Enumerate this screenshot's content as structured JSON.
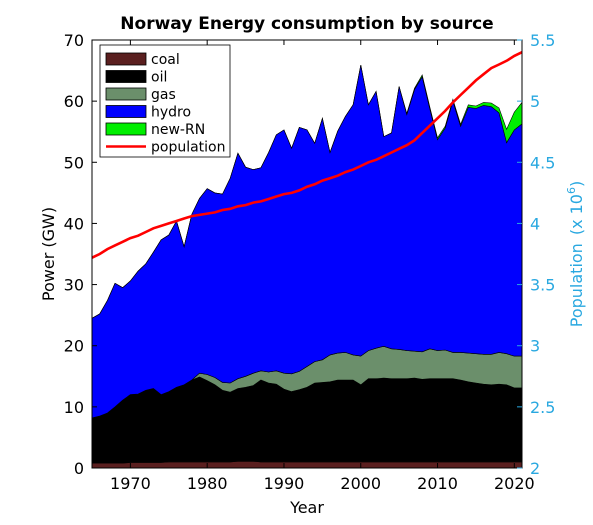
{
  "chart_data": {
    "type": "area",
    "title": "Norway Energy consumption by source",
    "xlabel": "Year",
    "ylabel": "Power (GW)",
    "y2label_main": "Population",
    "y2label_unit_prefix": "(x 10",
    "y2label_unit_exp": "6",
    "y2label_unit_suffix": ")",
    "xlim": [
      1965,
      2021
    ],
    "ylim": [
      0,
      70
    ],
    "y2lim": [
      2,
      5.5
    ],
    "xticks": [
      1970,
      1980,
      1990,
      2000,
      2010,
      2020
    ],
    "yticks": [
      0,
      10,
      20,
      30,
      40,
      50,
      60,
      70
    ],
    "y2ticks": [
      "2",
      "2.5",
      "3",
      "3.5",
      "4",
      "4.5",
      "5",
      "5.5"
    ],
    "legend_position": "top-left",
    "grid": false,
    "x": [
      1965,
      1966,
      1967,
      1968,
      1969,
      1970,
      1971,
      1972,
      1973,
      1974,
      1975,
      1976,
      1977,
      1978,
      1979,
      1980,
      1981,
      1982,
      1983,
      1984,
      1985,
      1986,
      1987,
      1988,
      1989,
      1990,
      1991,
      1992,
      1993,
      1994,
      1995,
      1996,
      1997,
      1998,
      1999,
      2000,
      2001,
      2002,
      2003,
      2004,
      2005,
      2006,
      2007,
      2008,
      2009,
      2010,
      2011,
      2012,
      2013,
      2014,
      2015,
      2016,
      2017,
      2018,
      2019,
      2020,
      2021
    ],
    "series": [
      {
        "name": "coal",
        "color": "#5a1f1f",
        "values": [
          0.8,
          0.8,
          0.8,
          0.8,
          0.8,
          0.9,
          0.9,
          0.9,
          0.9,
          0.9,
          1.0,
          1.0,
          1.0,
          1.0,
          1.0,
          1.0,
          1.0,
          1.0,
          1.0,
          1.1,
          1.1,
          1.1,
          1.0,
          1.0,
          1.0,
          1.0,
          1.0,
          1.0,
          1.0,
          1.0,
          1.0,
          1.0,
          1.0,
          1.0,
          1.0,
          1.0,
          1.0,
          1.0,
          1.0,
          1.0,
          1.0,
          1.0,
          1.0,
          1.0,
          1.0,
          1.0,
          1.0,
          1.0,
          1.0,
          1.0,
          1.0,
          1.0,
          1.0,
          1.0,
          1.0,
          1.0,
          1.0
        ]
      },
      {
        "name": "oil",
        "color": "#000000",
        "values": [
          7.4,
          7.7,
          8.2,
          9.2,
          10.3,
          11.1,
          11.2,
          11.8,
          12.1,
          11.1,
          11.5,
          12.2,
          12.6,
          13.4,
          13.9,
          13.3,
          12.6,
          11.7,
          11.4,
          11.9,
          12.1,
          12.4,
          13.4,
          12.9,
          12.7,
          11.9,
          11.5,
          11.8,
          12.2,
          12.9,
          13.0,
          13.1,
          13.4,
          13.4,
          13.4,
          12.6,
          13.6,
          13.6,
          13.7,
          13.6,
          13.6,
          13.6,
          13.7,
          13.5,
          13.6,
          13.6,
          13.6,
          13.6,
          13.4,
          13.1,
          12.9,
          12.7,
          12.6,
          12.7,
          12.6,
          12.1,
          12.1
        ]
      },
      {
        "name": "gas",
        "color": "#6b8f6b",
        "values": [
          0,
          0,
          0,
          0,
          0,
          0,
          0,
          0,
          0,
          0,
          0,
          0,
          0,
          0,
          0.6,
          1.0,
          1.2,
          1.3,
          1.5,
          1.6,
          1.8,
          2.0,
          1.5,
          1.8,
          2.2,
          2.6,
          2.9,
          3.0,
          3.4,
          3.5,
          3.7,
          4.4,
          4.4,
          4.5,
          4.1,
          4.7,
          4.6,
          5.0,
          5.2,
          4.9,
          4.8,
          4.6,
          4.4,
          4.5,
          4.9,
          4.6,
          4.7,
          4.3,
          4.5,
          4.7,
          4.8,
          4.9,
          5.0,
          5.2,
          5.1,
          5.2,
          5.2
        ]
      },
      {
        "name": "hydro",
        "color": "#0000ff",
        "values": [
          16.3,
          16.7,
          18.4,
          20.2,
          18.4,
          18.6,
          20.1,
          20.7,
          22.3,
          25.3,
          25.6,
          27.2,
          22.6,
          27.1,
          28.6,
          30.4,
          30.2,
          30.8,
          33.5,
          36.9,
          34.2,
          33.3,
          33.2,
          35.9,
          38.6,
          39.8,
          36.9,
          39.9,
          38.7,
          35.7,
          39.5,
          33.1,
          36.3,
          38.6,
          40.9,
          47.6,
          40.2,
          42.0,
          34.3,
          35.3,
          43.0,
          38.6,
          42.8,
          45.0,
          39.2,
          34.5,
          36.3,
          41.1,
          37.0,
          40.2,
          40.1,
          40.7,
          40.5,
          39.2,
          34.5,
          37.0,
          38.0
        ]
      },
      {
        "name": "new-RN",
        "color": "#00ee00",
        "values": [
          0,
          0,
          0,
          0,
          0,
          0,
          0,
          0,
          0,
          0,
          0,
          0,
          0,
          0,
          0,
          0,
          0,
          0,
          0,
          0,
          0,
          0,
          0,
          0,
          0,
          0,
          0,
          0,
          0,
          0,
          0,
          0,
          0,
          0,
          0,
          0,
          0,
          0,
          0,
          0,
          0,
          0.2,
          0.2,
          0.3,
          0.3,
          0.3,
          0.3,
          0.3,
          0.3,
          0.4,
          0.4,
          0.5,
          0.6,
          0.8,
          2.2,
          2.9,
          3.5
        ]
      }
    ],
    "population": {
      "name": "population",
      "color": "#ff0000",
      "values": [
        3.72,
        3.75,
        3.79,
        3.82,
        3.85,
        3.88,
        3.9,
        3.93,
        3.96,
        3.98,
        4.0,
        4.02,
        4.04,
        4.06,
        4.07,
        4.08,
        4.09,
        4.11,
        4.12,
        4.14,
        4.15,
        4.17,
        4.18,
        4.2,
        4.22,
        4.24,
        4.25,
        4.27,
        4.3,
        4.32,
        4.35,
        4.37,
        4.39,
        4.42,
        4.44,
        4.47,
        4.5,
        4.52,
        4.55,
        4.58,
        4.61,
        4.64,
        4.68,
        4.74,
        4.8,
        4.86,
        4.92,
        4.99,
        5.05,
        5.11,
        5.17,
        5.22,
        5.27,
        5.3,
        5.33,
        5.37,
        5.4
      ]
    }
  }
}
